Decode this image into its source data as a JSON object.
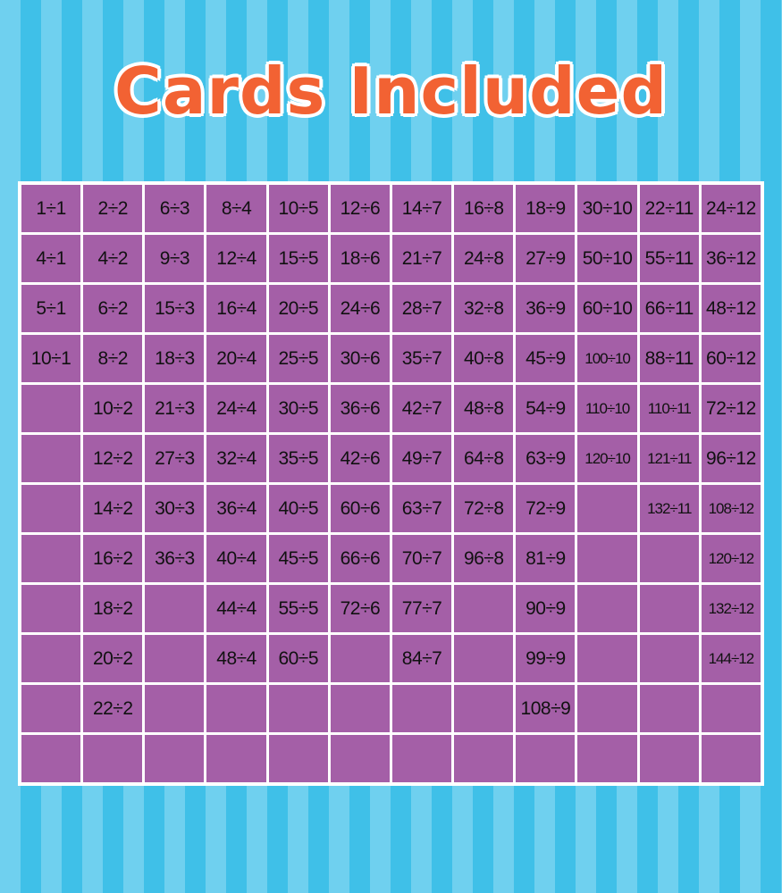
{
  "title": "Cards Included",
  "colors": {
    "title": "#f26233",
    "cell": "#a45fa7",
    "stripe_light": "#6fd0ef",
    "stripe_dark": "#3fc0e8"
  },
  "rows": [
    [
      "1÷1",
      "2÷2",
      "6÷3",
      "8÷4",
      "10÷5",
      "12÷6",
      "14÷7",
      "16÷8",
      "18÷9",
      "30÷10",
      "22÷11",
      "24÷12"
    ],
    [
      "4÷1",
      "4÷2",
      "9÷3",
      "12÷4",
      "15÷5",
      "18÷6",
      "21÷7",
      "24÷8",
      "27÷9",
      "50÷10",
      "55÷11",
      "36÷12"
    ],
    [
      "5÷1",
      "6÷2",
      "15÷3",
      "16÷4",
      "20÷5",
      "24÷6",
      "28÷7",
      "32÷8",
      "36÷9",
      "60÷10",
      "66÷11",
      "48÷12"
    ],
    [
      "10÷1",
      "8÷2",
      "18÷3",
      "20÷4",
      "25÷5",
      "30÷6",
      "35÷7",
      "40÷8",
      "45÷9",
      "100÷10",
      "88÷11",
      "60÷12"
    ],
    [
      "",
      "10÷2",
      "21÷3",
      "24÷4",
      "30÷5",
      "36÷6",
      "42÷7",
      "48÷8",
      "54÷9",
      "110÷10",
      "110÷11",
      "72÷12"
    ],
    [
      "",
      "12÷2",
      "27÷3",
      "32÷4",
      "35÷5",
      "42÷6",
      "49÷7",
      "64÷8",
      "63÷9",
      "120÷10",
      "121÷11",
      "96÷12"
    ],
    [
      "",
      "14÷2",
      "30÷3",
      "36÷4",
      "40÷5",
      "60÷6",
      "63÷7",
      "72÷8",
      "72÷9",
      "",
      "132÷11",
      "108÷12"
    ],
    [
      "",
      "16÷2",
      "36÷3",
      "40÷4",
      "45÷5",
      "66÷6",
      "70÷7",
      "96÷8",
      "81÷9",
      "",
      "",
      "120÷12"
    ],
    [
      "",
      "18÷2",
      "",
      "44÷4",
      "55÷5",
      "72÷6",
      "77÷7",
      "",
      "90÷9",
      "",
      "",
      "132÷12"
    ],
    [
      "",
      "20÷2",
      "",
      "48÷4",
      "60÷5",
      "",
      "84÷7",
      "",
      "99÷9",
      "",
      "",
      "144÷12"
    ],
    [
      "",
      "22÷2",
      "",
      "",
      "",
      "",
      "",
      "",
      "108÷9",
      "",
      "",
      ""
    ],
    [
      "",
      "",
      "",
      "",
      "",
      "",
      "",
      "",
      "",
      "",
      "",
      ""
    ]
  ]
}
